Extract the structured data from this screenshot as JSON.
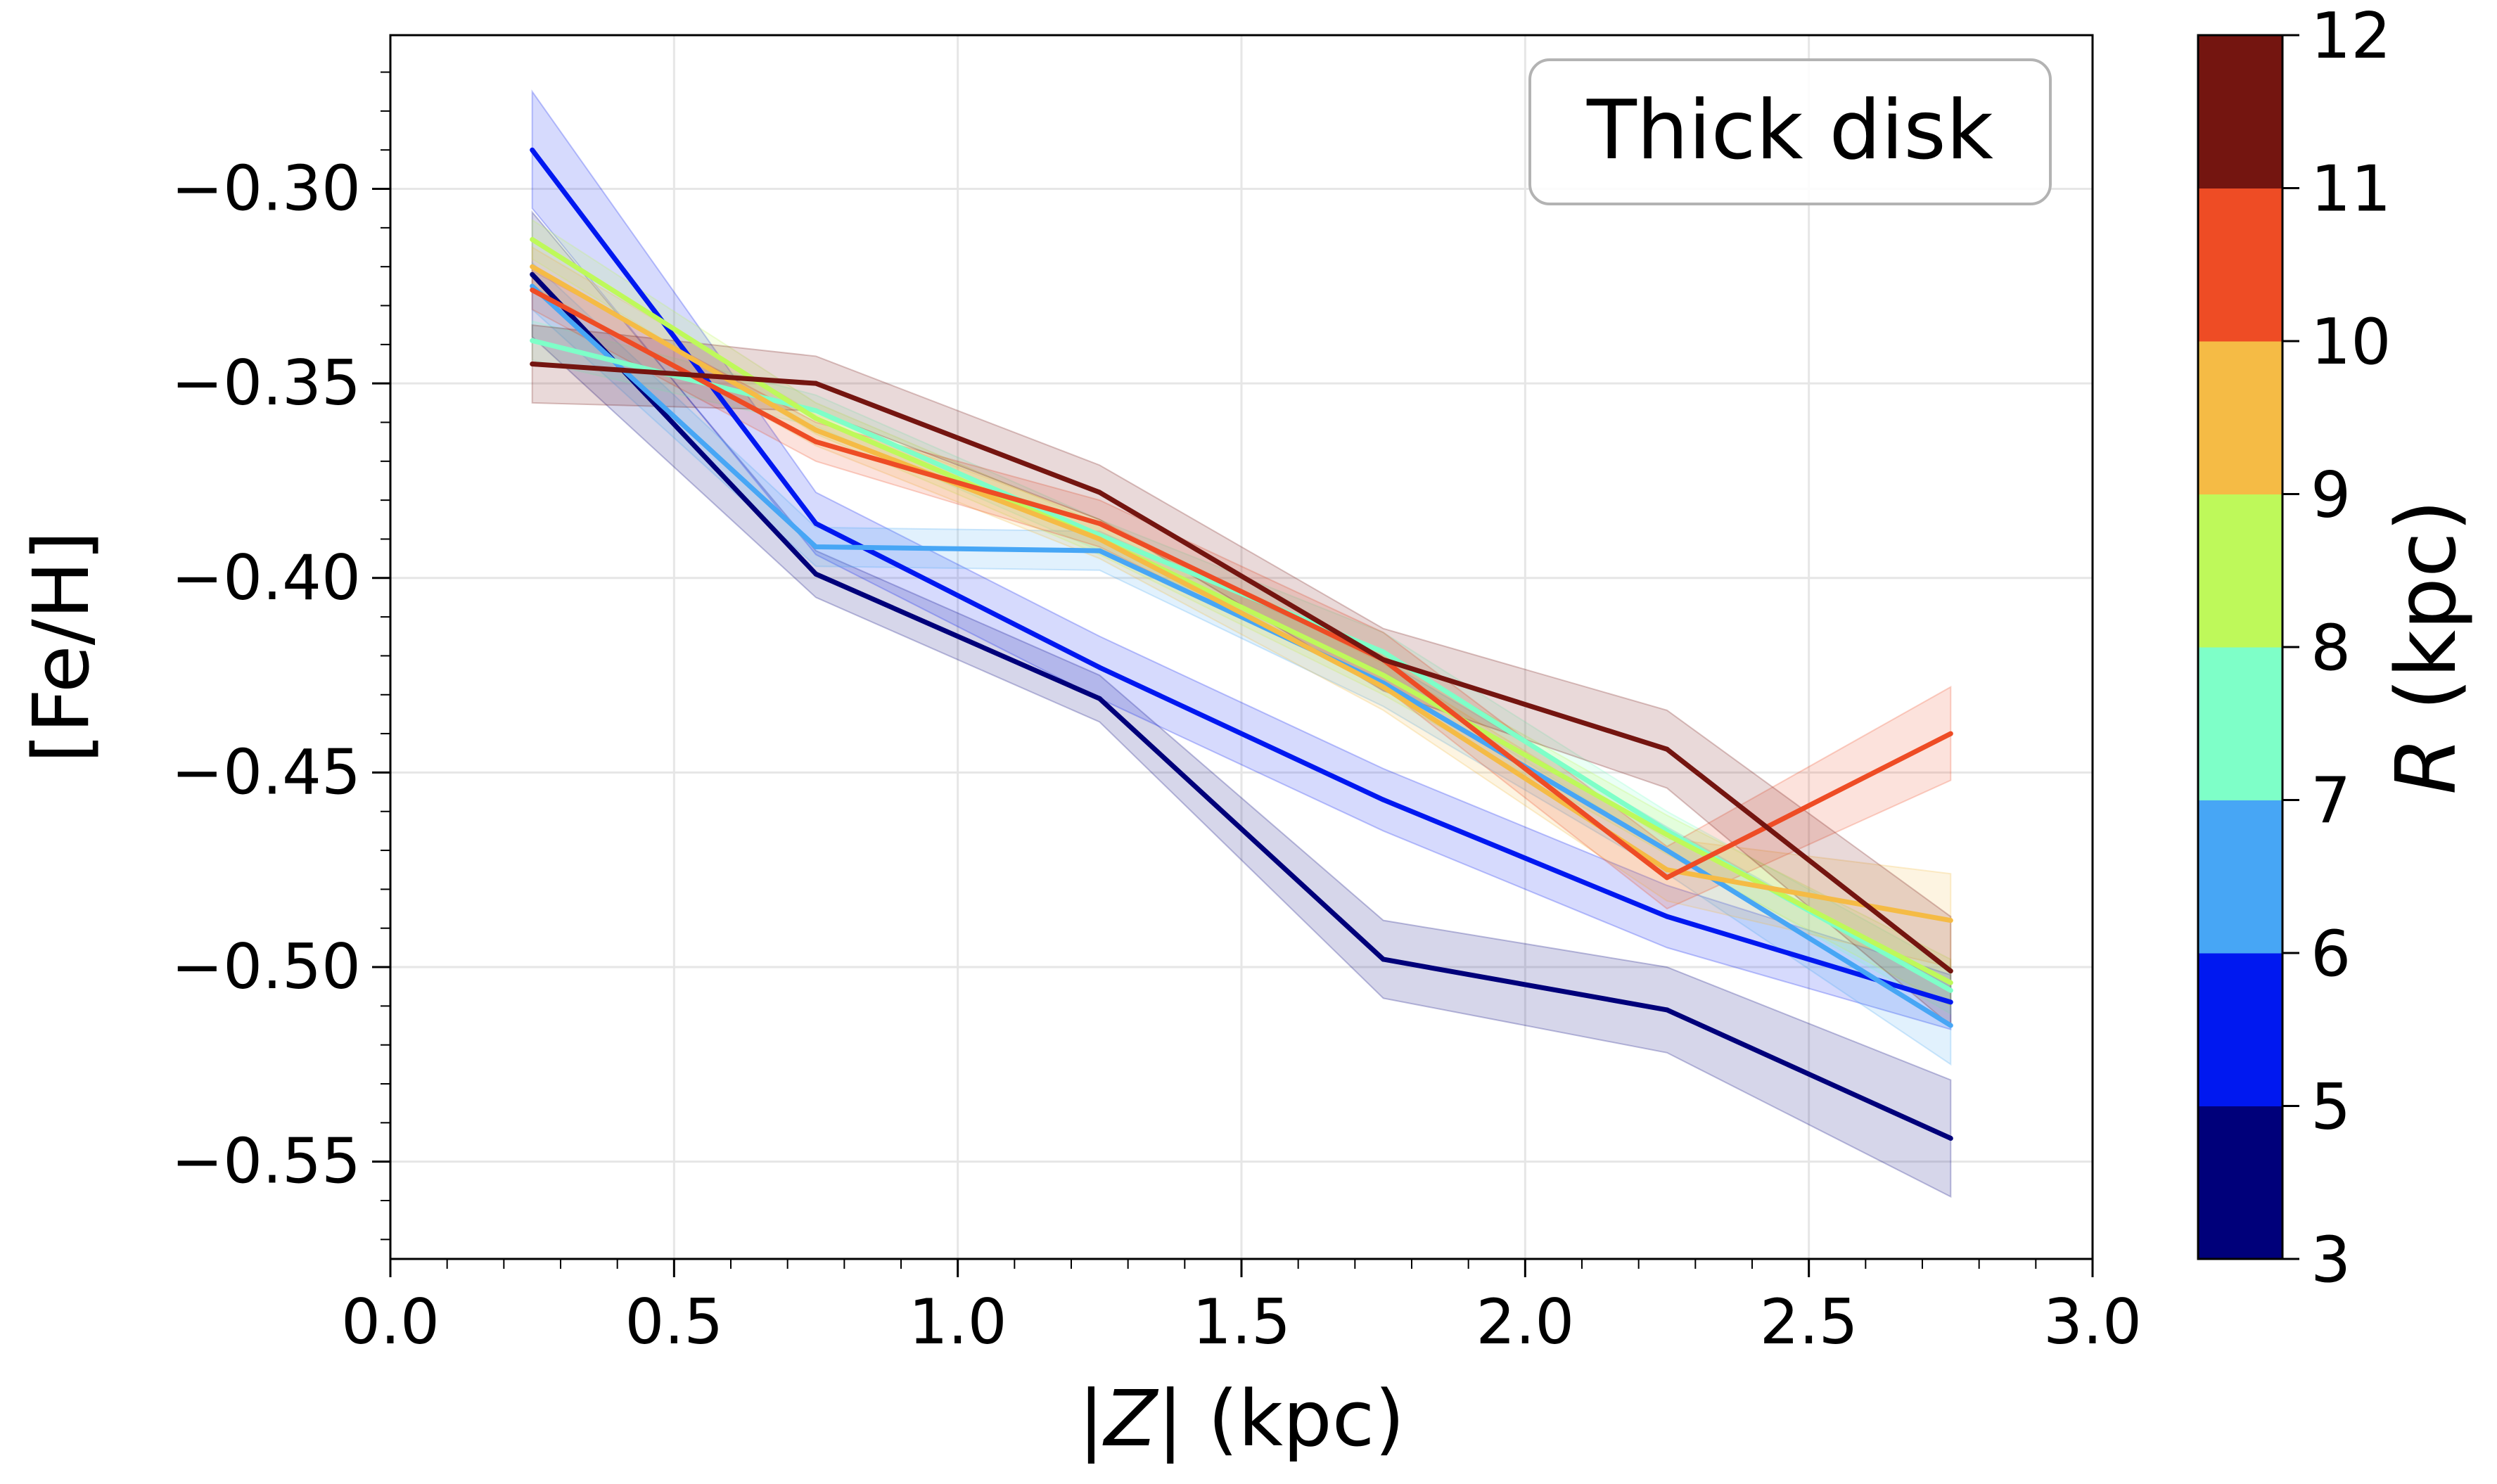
{
  "chart_data": {
    "type": "line",
    "xlabel_prefix": "|",
    "xlabel_var": "Z",
    "xlabel_suffix": "| (kpc)",
    "ylabel": "[Fe/H]",
    "xlim": [
      0.0,
      3.0
    ],
    "ylim": [
      -0.575,
      -0.2605
    ],
    "xticks": [
      0.0,
      0.5,
      1.0,
      1.5,
      2.0,
      2.5,
      3.0
    ],
    "xtick_labels": [
      "0.0",
      "0.5",
      "1.0",
      "1.5",
      "2.0",
      "2.5",
      "3.0"
    ],
    "yticks": [
      -0.3,
      -0.35,
      -0.4,
      -0.45,
      -0.5,
      -0.55
    ],
    "ytick_labels": [
      "−0.30",
      "−0.35",
      "−0.40",
      "−0.45",
      "−0.50",
      "−0.55"
    ],
    "grid": true,
    "legend_text": "Thick disk",
    "legend_position": "top-right",
    "x": [
      0.25,
      0.75,
      1.25,
      1.75,
      2.25,
      2.75
    ],
    "series": [
      {
        "color": "#00007a",
        "values": [
          -0.322,
          -0.399,
          -0.431,
          -0.498,
          -0.511,
          -0.544
        ],
        "band": [
          0.016,
          0.006,
          0.006,
          0.01,
          0.011,
          0.015
        ]
      },
      {
        "color": "#0018f0",
        "values": [
          -0.29,
          -0.386,
          -0.423,
          -0.457,
          -0.487,
          -0.509
        ],
        "band": [
          0.015,
          0.008,
          0.008,
          0.008,
          0.008,
          0.007
        ]
      },
      {
        "color": "#47a6f5",
        "values": [
          -0.325,
          -0.392,
          -0.393,
          -0.427,
          -0.47,
          -0.515
        ],
        "band": [
          0.006,
          0.005,
          0.005,
          0.006,
          0.006,
          0.01
        ]
      },
      {
        "color": "#7effc8",
        "values": [
          -0.339,
          -0.357,
          -0.389,
          -0.419,
          -0.465,
          -0.506
        ],
        "band": [
          0.005,
          0.004,
          0.004,
          0.005,
          0.005,
          0.006
        ]
      },
      {
        "color": "#bef95a",
        "values": [
          -0.313,
          -0.359,
          -0.39,
          -0.425,
          -0.466,
          -0.504
        ],
        "band": [
          0.005,
          0.004,
          0.004,
          0.005,
          0.005,
          0.006
        ]
      },
      {
        "color": "#f5bb45",
        "values": [
          -0.32,
          -0.362,
          -0.39,
          -0.428,
          -0.475,
          -0.488
        ],
        "band": [
          0.005,
          0.004,
          0.005,
          0.006,
          0.008,
          0.012
        ]
      },
      {
        "color": "#ee4c25",
        "values": [
          -0.326,
          -0.365,
          -0.386,
          -0.421,
          -0.477,
          -0.44
        ],
        "band": [
          0.005,
          0.005,
          0.006,
          0.007,
          0.008,
          0.012
        ]
      },
      {
        "color": "#741510",
        "values": [
          -0.345,
          -0.35,
          -0.378,
          -0.421,
          -0.444,
          -0.501
        ],
        "band": [
          0.01,
          0.007,
          0.007,
          0.008,
          0.01,
          0.014
        ]
      }
    ],
    "colorbar": {
      "label_var": "R",
      "label_suffix": " (kpc)",
      "boundaries": [
        3,
        5,
        6,
        7,
        8,
        9,
        10,
        11,
        12
      ],
      "tick_labels": [
        "3",
        "5",
        "6",
        "7",
        "8",
        "9",
        "10",
        "11",
        "12"
      ],
      "colors": [
        "#00007a",
        "#0018f0",
        "#47a6f5",
        "#7effc8",
        "#bef95a",
        "#f5bb45",
        "#ee4c25",
        "#741510"
      ]
    }
  }
}
